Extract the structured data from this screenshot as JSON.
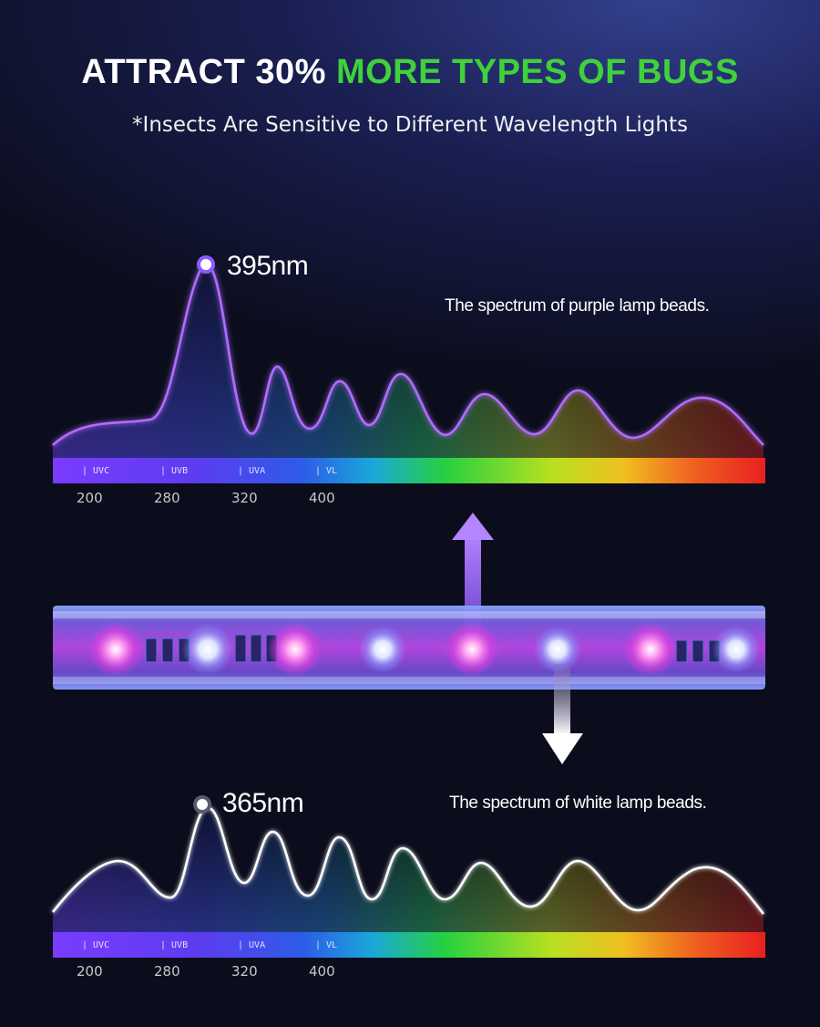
{
  "headline": {
    "part_white": "ATTRACT 30% ",
    "part_green": "MORE TYPES OF BUGS",
    "white_color": "#ffffff",
    "green_color": "#3fd23a"
  },
  "subheading": "*Insects Are Sensitive to Different Wavelength Lights",
  "spectra": [
    {
      "peak_label": "395nm",
      "description": "The spectrum of purple lamp beads.",
      "line_color": "#b06cff",
      "bands": [
        "| UVC",
        "| UVB",
        "| UVA",
        "| VL"
      ],
      "ticks": [
        "200",
        "280",
        "320",
        "400"
      ]
    },
    {
      "peak_label": "365nm",
      "description": "The spectrum of white lamp beads.",
      "line_color": "#ffffff",
      "bands": [
        "| UVC",
        "| UVB",
        "| UVA",
        "| VL"
      ],
      "ticks": [
        "200",
        "280",
        "320",
        "400"
      ]
    }
  ],
  "colors": {
    "purple_arrow": "#a878f0",
    "white_arrow": "#ffffff",
    "strip_glow": "#d24cff"
  },
  "icons": [
    "arrow-up-icon",
    "arrow-down-icon",
    "led-bead-icon"
  ]
}
